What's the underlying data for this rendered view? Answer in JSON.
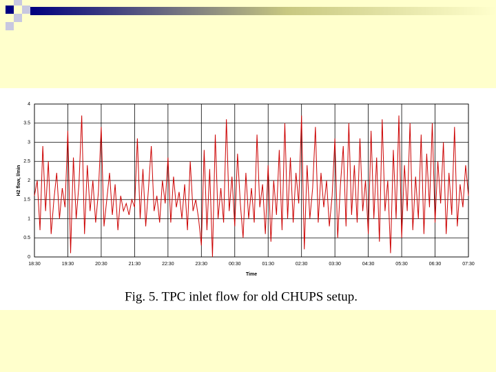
{
  "chart_data": {
    "type": "line",
    "y_label": "H2 flow, l/min",
    "x_label": "Time",
    "caption": "Fig. 5. TPC inlet flow for old CHUPS setup.",
    "categories": [
      "18:30",
      null,
      null,
      null,
      null,
      null,
      null,
      null,
      null,
      null,
      null,
      null,
      "19:30",
      null,
      null,
      null,
      null,
      null,
      null,
      null,
      null,
      null,
      null,
      null,
      "20:30",
      null,
      null,
      null,
      null,
      null,
      null,
      null,
      null,
      null,
      null,
      null,
      "21:30",
      null,
      null,
      null,
      null,
      null,
      null,
      null,
      null,
      null,
      null,
      null,
      "22:30",
      null,
      null,
      null,
      null,
      null,
      null,
      null,
      null,
      null,
      null,
      null,
      "23:30",
      null,
      null,
      null,
      null,
      null,
      null,
      null,
      null,
      null,
      null,
      null,
      "00:30",
      null,
      null,
      null,
      null,
      null,
      null,
      null,
      null,
      null,
      null,
      null,
      "01:30",
      null,
      null,
      null,
      null,
      null,
      null,
      null,
      null,
      null,
      null,
      null,
      "02:30",
      null,
      null,
      null,
      null,
      null,
      null,
      null,
      null,
      null,
      null,
      null,
      "03:30",
      null,
      null,
      null,
      null,
      null,
      null,
      null,
      null,
      null,
      null,
      null,
      "04:30",
      null,
      null,
      null,
      null,
      null,
      null,
      null,
      null,
      null,
      null,
      null,
      "05:30",
      null,
      null,
      null,
      null,
      null,
      null,
      null,
      null,
      null,
      null,
      null,
      "06:30",
      null,
      null,
      null,
      null,
      null,
      null,
      null,
      null,
      null,
      null,
      null,
      "07:30"
    ],
    "values": [
      1.6,
      2.0,
      0.7,
      2.9,
      1.2,
      2.5,
      0.6,
      1.5,
      2.2,
      1.0,
      1.8,
      1.3,
      3.3,
      0.1,
      2.6,
      1.0,
      1.9,
      3.7,
      0.6,
      2.4,
      1.2,
      2.0,
      0.9,
      1.7,
      3.4,
      0.8,
      1.5,
      2.2,
      1.1,
      1.9,
      0.7,
      1.6,
      1.2,
      1.4,
      1.1,
      1.5,
      1.3,
      3.1,
      1.0,
      2.3,
      0.8,
      1.8,
      2.9,
      1.2,
      1.6,
      0.9,
      2.0,
      1.4,
      2.6,
      0.9,
      2.1,
      1.3,
      1.7,
      1.0,
      1.9,
      0.7,
      2.5,
      1.2,
      1.5,
      1.0,
      0.3,
      2.8,
      0.7,
      2.3,
      0.0,
      3.2,
      1.0,
      1.8,
      0.9,
      3.6,
      1.2,
      2.1,
      0.8,
      2.7,
      1.4,
      0.5,
      2.2,
      1.0,
      1.8,
      0.9,
      3.2,
      1.3,
      1.9,
      0.6,
      2.4,
      0.4,
      2.0,
      1.1,
      2.8,
      0.7,
      3.5,
      1.0,
      2.6,
      0.9,
      2.2,
      1.4,
      3.7,
      0.2,
      2.4,
      1.0,
      1.8,
      3.4,
      0.9,
      2.2,
      1.3,
      2.0,
      0.8,
      1.6,
      3.1,
      0.5,
      1.9,
      2.9,
      0.8,
      3.5,
      1.1,
      2.4,
      0.9,
      3.1,
      1.2,
      2.0,
      0.6,
      3.3,
      1.0,
      2.6,
      0.4,
      3.6,
      1.2,
      2.0,
      0.1,
      2.8,
      1.0,
      3.7,
      0.5,
      2.4,
      1.2,
      3.5,
      0.7,
      2.1,
      1.0,
      3.2,
      0.6,
      2.7,
      1.3,
      3.5,
      0.9,
      2.5,
      1.4,
      3.0,
      0.6,
      2.2,
      1.1,
      3.4,
      0.8,
      1.9,
      1.3,
      2.4,
      1.6
    ],
    "color": "#cc0000",
    "ylim": [
      0,
      4
    ],
    "yticks": [
      0,
      0.5,
      1,
      1.5,
      2,
      2.5,
      3,
      3.5,
      4
    ],
    "grid": true
  }
}
